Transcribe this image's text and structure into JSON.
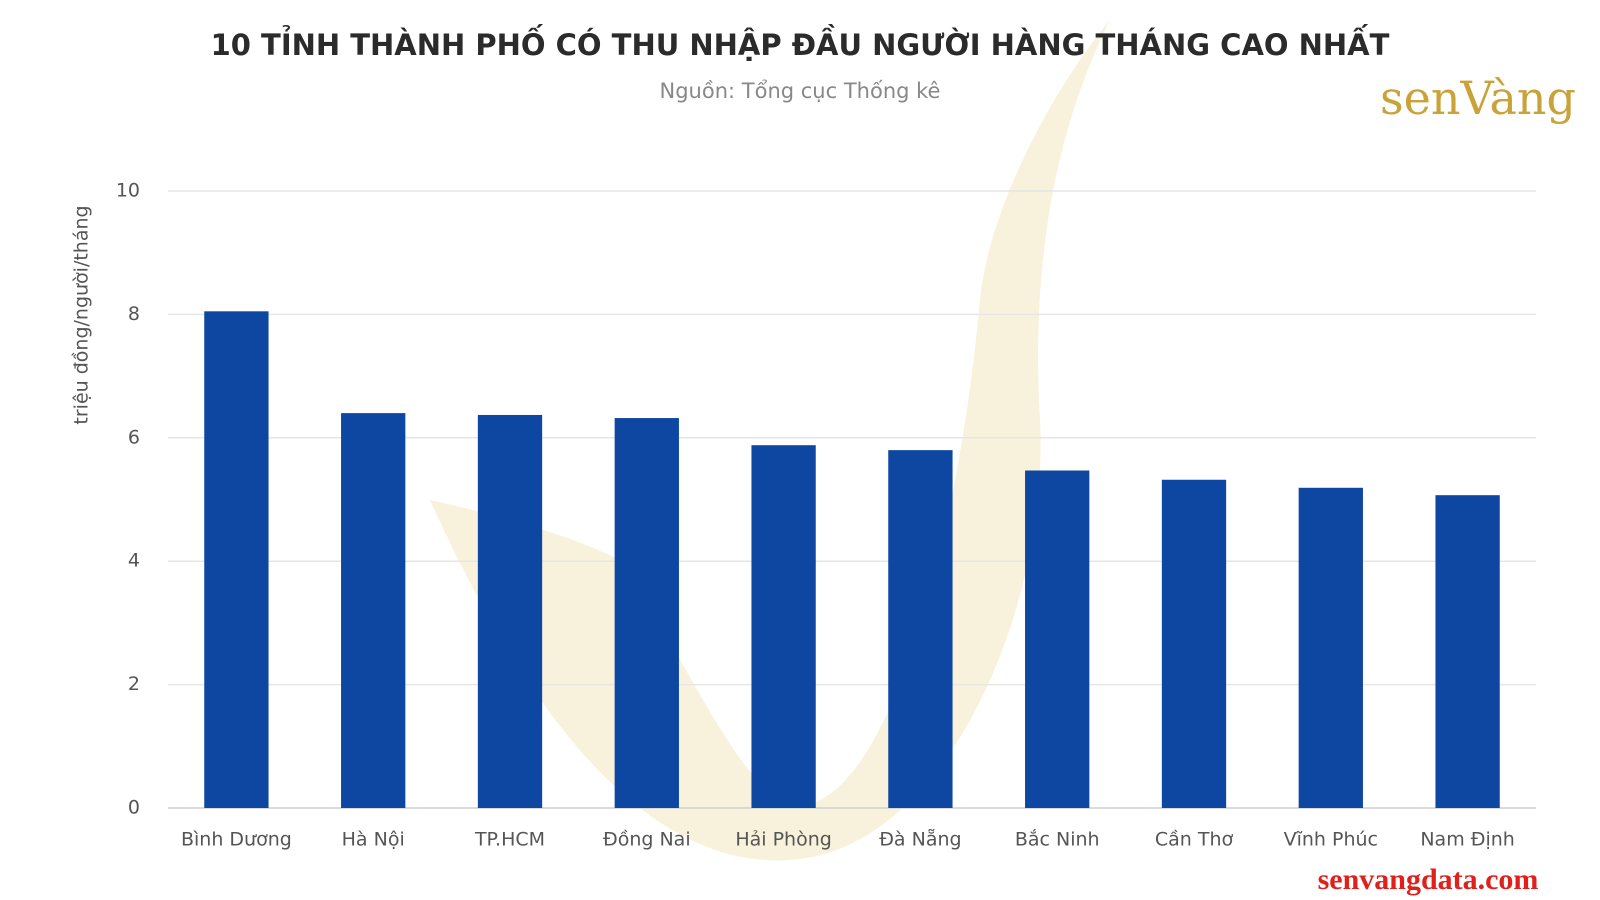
{
  "chart_data": {
    "type": "bar",
    "title": "10 TỈNH THÀNH PHỐ CÓ THU NHẬP ĐẦU NGƯỜI HÀNG THÁNG CAO NHẤT",
    "subtitle": "Nguồn: Tổng cục Thống kê",
    "y_label": "triệu đồng/người/tháng",
    "logo": "senVàng",
    "watermark": "senvangdata.com",
    "categories": [
      "Bình Dương",
      "Hà Nội",
      "TP.HCM",
      "Đồng Nai",
      "Hải Phòng",
      "Đà Nẵng",
      "Bắc Ninh",
      "Cần Thơ",
      "Vĩnh Phúc",
      "Nam Định"
    ],
    "values": [
      8.05,
      6.4,
      6.37,
      6.32,
      5.88,
      5.8,
      5.47,
      5.32,
      5.19,
      5.07
    ],
    "color": "#0d47a1",
    "ylim": [
      0,
      10
    ],
    "yticks": [
      0,
      2,
      4,
      6,
      8,
      10
    ],
    "grid": true
  }
}
